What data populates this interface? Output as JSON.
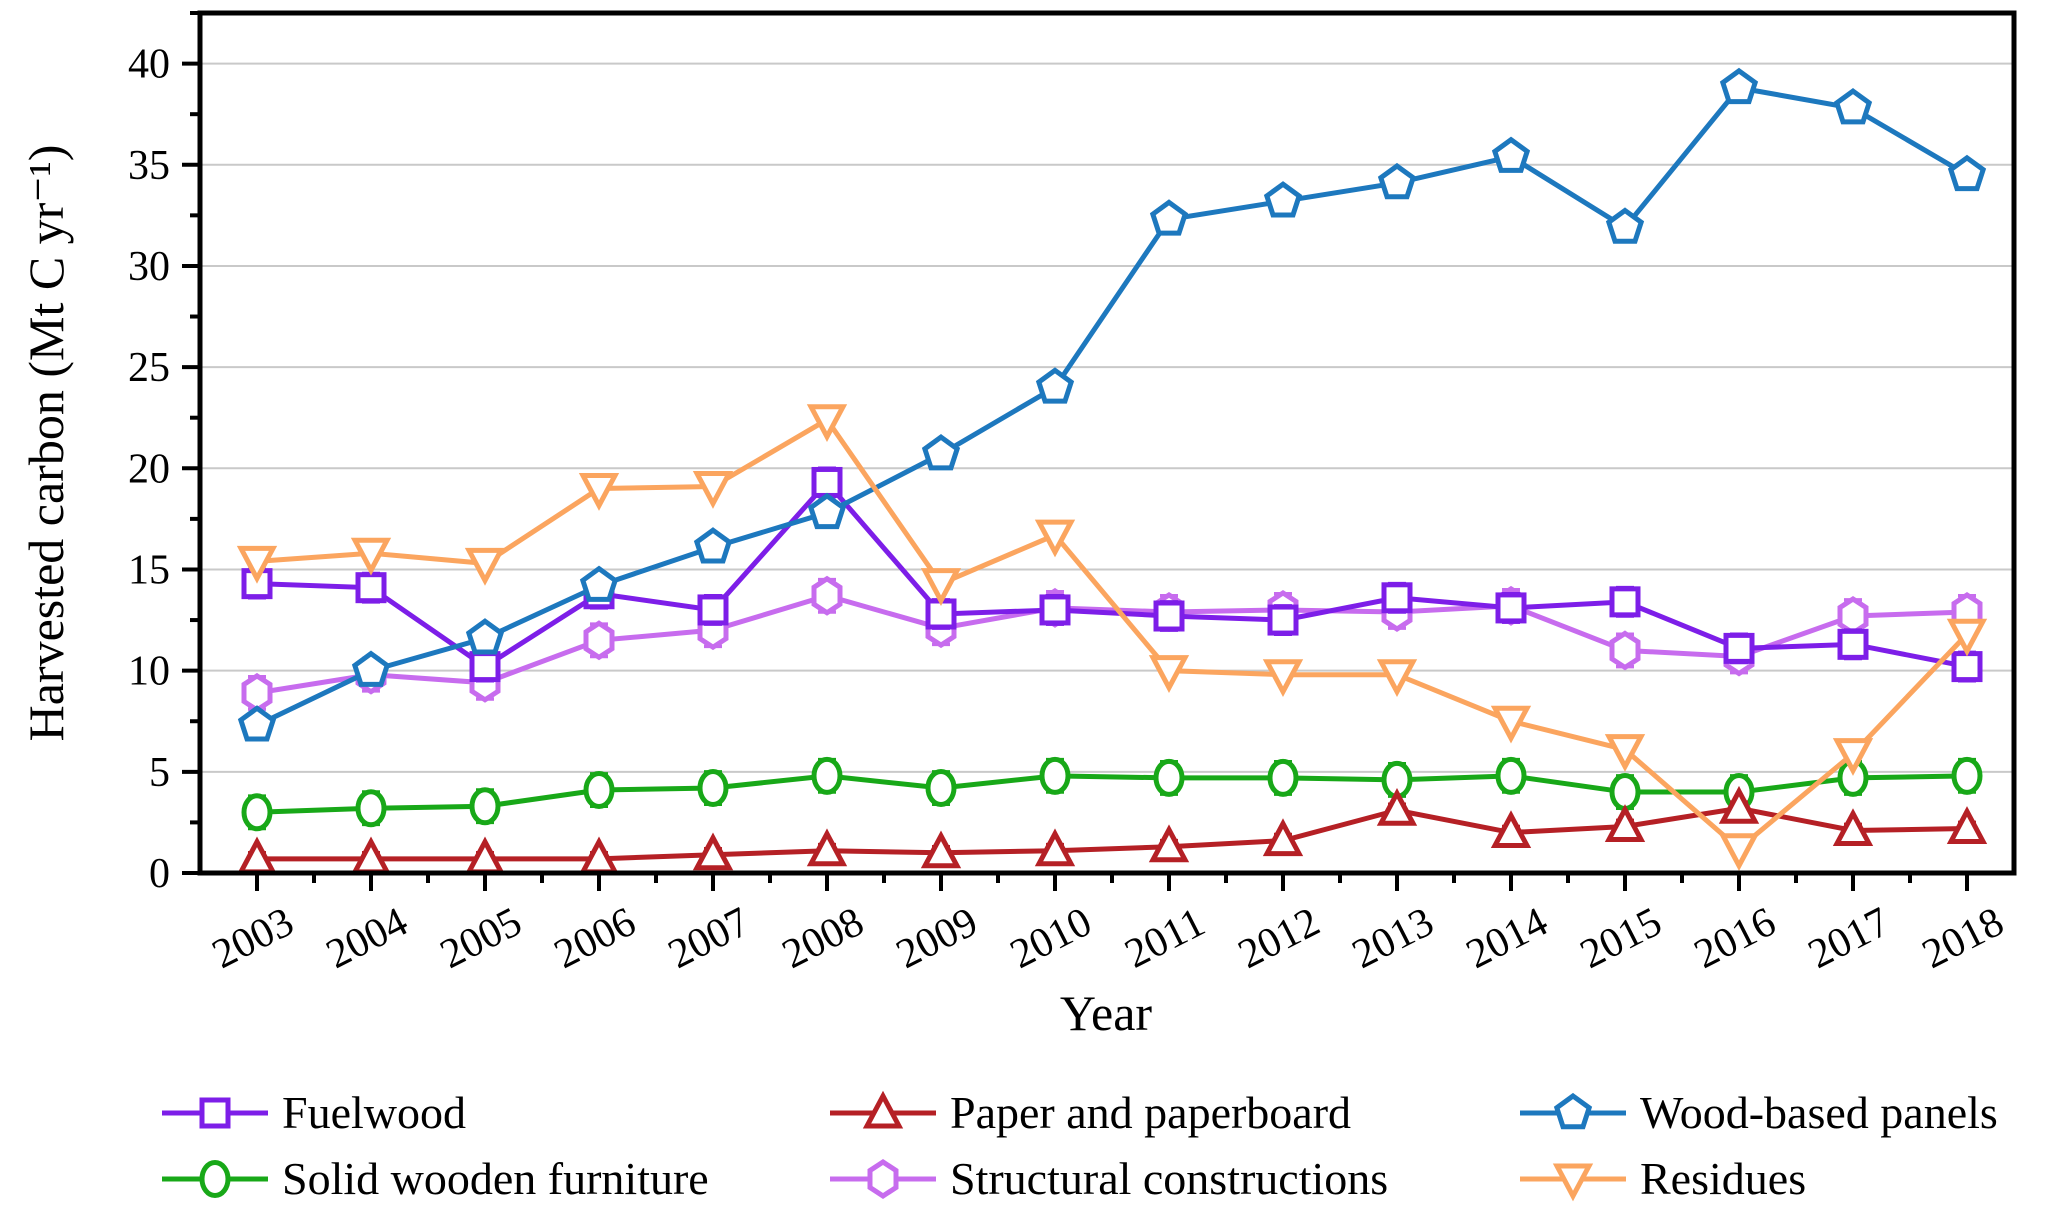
{
  "chart_data": {
    "type": "line",
    "title": "",
    "xlabel": "Year",
    "ylabel": "Harvested carbon (Mt C yr⁻¹)",
    "x": [
      2003,
      2004,
      2005,
      2006,
      2007,
      2008,
      2009,
      2010,
      2011,
      2012,
      2013,
      2014,
      2015,
      2016,
      2017,
      2018
    ],
    "ylim": [
      0,
      42.5
    ],
    "yticks_major": [
      0,
      5,
      10,
      15,
      20,
      25,
      30,
      35,
      40
    ],
    "ytick_minor_step": 2.5,
    "grid": "horizontal gridlines at major y ticks",
    "grid_color": "#c9c9c9",
    "axis_color": "#000000",
    "legend_position": "bottom",
    "series": [
      {
        "name": "Fuelwood",
        "marker": "square",
        "color": "#7d1ee8",
        "err": 0.7,
        "values": [
          14.3,
          14.1,
          10.2,
          13.8,
          13.0,
          19.3,
          12.8,
          13.0,
          12.7,
          12.5,
          13.6,
          13.1,
          13.4,
          11.1,
          11.3,
          10.2
        ]
      },
      {
        "name": "Solid wooden furniture",
        "marker": "circle",
        "color": "#18a818",
        "err": 0.8,
        "values": [
          3.0,
          3.2,
          3.3,
          4.1,
          4.2,
          4.8,
          4.2,
          4.8,
          4.7,
          4.7,
          4.6,
          4.8,
          4.0,
          4.0,
          4.7,
          4.8
        ]
      },
      {
        "name": "Paper and paperboard",
        "marker": "triangle-up",
        "color": "#b52025",
        "err": 0.3,
        "values": [
          0.7,
          0.7,
          0.7,
          0.7,
          0.9,
          1.1,
          1.0,
          1.1,
          1.3,
          1.6,
          3.1,
          2.0,
          2.3,
          3.2,
          2.1,
          2.2
        ]
      },
      {
        "name": "Structural constructions",
        "marker": "hexagon",
        "color": "#c76cee",
        "err": 0.8,
        "values": [
          8.9,
          9.8,
          9.4,
          11.5,
          12.0,
          13.7,
          12.1,
          13.1,
          12.9,
          13.0,
          12.9,
          13.2,
          11.0,
          10.7,
          12.7,
          12.9
        ]
      },
      {
        "name": "Wood-based panels",
        "marker": "pentagon",
        "color": "#1d78be",
        "err": 0,
        "values": [
          7.3,
          10.0,
          11.6,
          14.2,
          16.1,
          17.8,
          20.7,
          24.0,
          32.3,
          33.2,
          34.1,
          35.4,
          31.9,
          38.8,
          37.8,
          34.5
        ]
      },
      {
        "name": "Residues",
        "marker": "triangle-down",
        "color": "#fba55f",
        "err": 0,
        "values": [
          15.4,
          15.8,
          15.3,
          19.0,
          19.1,
          22.4,
          14.3,
          16.7,
          10.0,
          9.8,
          9.8,
          7.5,
          6.1,
          1.2,
          5.9,
          11.8
        ]
      }
    ],
    "legend_columns": [
      [
        "Fuelwood",
        "Solid wooden furniture"
      ],
      [
        "Paper and paperboard",
        "Structural constructions"
      ],
      [
        "Wood-based panels",
        "Residues"
      ]
    ]
  }
}
